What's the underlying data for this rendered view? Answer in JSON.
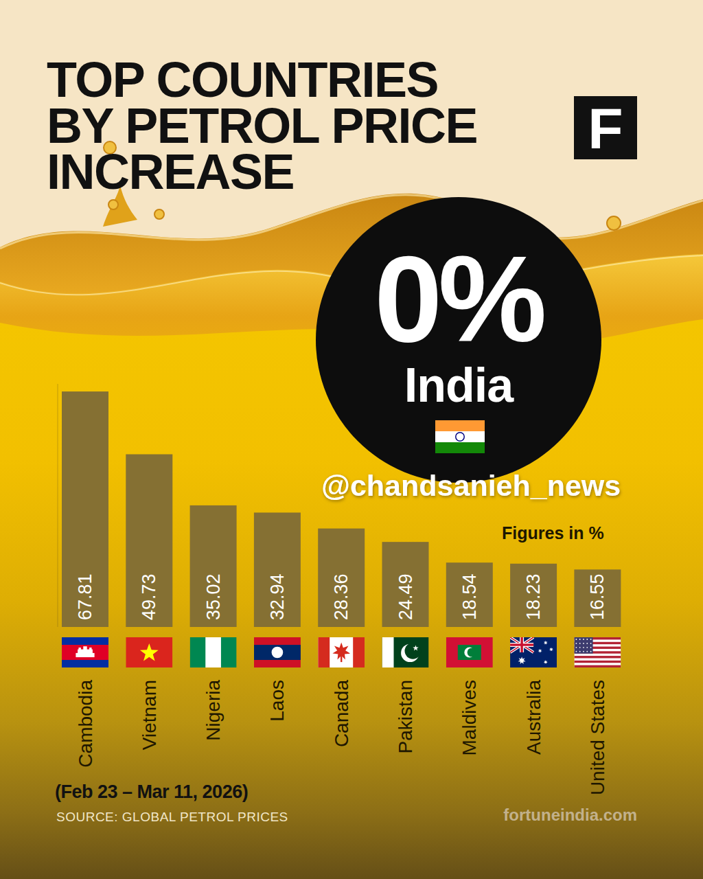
{
  "chart_data": {
    "type": "bar",
    "title": "TOP COUNTRIES BY PETROL PRICE INCREASE",
    "logo": "F",
    "subtitle": "(Feb 23 – Mar 11, 2026)",
    "source": "SOURCE: GLOBAL PETROL PRICES",
    "credit": "fortuneindia.com",
    "annotations": [
      "@chandsanieh_news",
      "Figures in %"
    ],
    "highlight": {
      "category": "India",
      "value": 0,
      "value_label": "0%"
    },
    "categories": [
      "Cambodia",
      "Vietnam",
      "Nigeria",
      "Laos",
      "Canada",
      "Pakistan",
      "Maldives",
      "Australia",
      "United States"
    ],
    "values": [
      67.81,
      49.73,
      35.02,
      32.94,
      28.36,
      24.49,
      18.54,
      18.23,
      16.55
    ],
    "color": "#857033",
    "ylim": [
      0,
      70
    ],
    "data_labels": true,
    "tick_labels": "x"
  }
}
